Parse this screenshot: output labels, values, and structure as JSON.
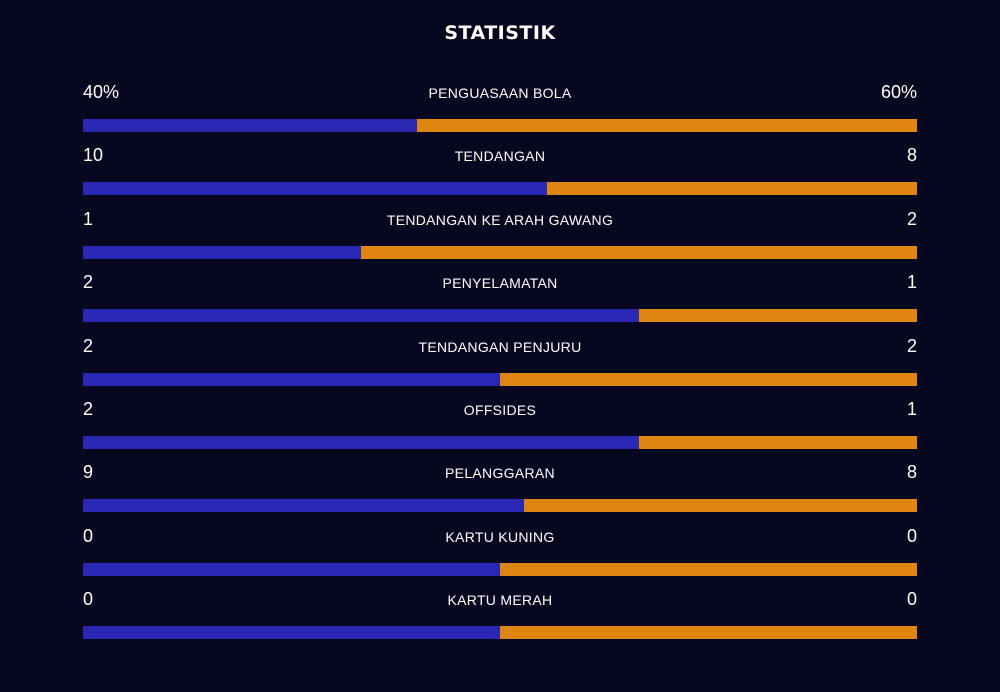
{
  "header": {
    "title": "STATISTIK"
  },
  "colors": {
    "background": "#07071f",
    "home": "#2a27b5",
    "away": "#df8512"
  },
  "stats": [
    {
      "label": "PENGUASAAN BOLA",
      "home": "40%",
      "away": "60%",
      "home_share": 0.4
    },
    {
      "label": "TENDANGAN",
      "home": "10",
      "away": "8",
      "home_share": 0.556
    },
    {
      "label": "TENDANGAN KE ARAH GAWANG",
      "home": "1",
      "away": "2",
      "home_share": 0.333
    },
    {
      "label": "PENYELAMATAN",
      "home": "2",
      "away": "1",
      "home_share": 0.667
    },
    {
      "label": "TENDANGAN PENJURU",
      "home": "2",
      "away": "2",
      "home_share": 0.5
    },
    {
      "label": "OFFSIDES",
      "home": "2",
      "away": "1",
      "home_share": 0.667
    },
    {
      "label": "PELANGGARAN",
      "home": "9",
      "away": "8",
      "home_share": 0.529
    },
    {
      "label": "KARTU KUNING",
      "home": "0",
      "away": "0",
      "home_share": 0.5
    },
    {
      "label": "KARTU MERAH",
      "home": "0",
      "away": "0",
      "home_share": 0.5
    }
  ]
}
